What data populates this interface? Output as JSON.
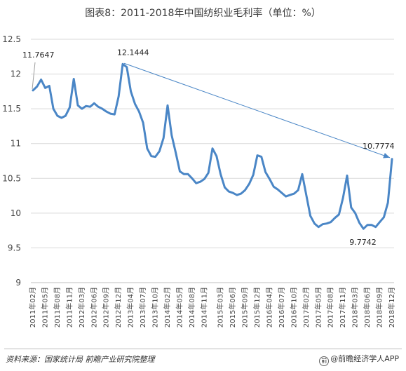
{
  "title": "图表8：2011-2018年中国纺织业毛利率（单位：%）",
  "chart_data": {
    "type": "line",
    "ylim": [
      9,
      12.5
    ],
    "yticks": [
      "9",
      "9.5",
      "10",
      "10.5",
      "11",
      "11.5",
      "12",
      "12.5"
    ],
    "x_tick_labels": [
      "2011年02月",
      "2011年05月",
      "2011年08月",
      "2011年11月",
      "2012年03月",
      "2012年06月",
      "2012年09月",
      "2012年12月",
      "2013年04月",
      "2013年07月",
      "2013年10月",
      "2014年02月",
      "2014年05月",
      "2014年08月",
      "2014年11月",
      "2015年03月",
      "2015年06月",
      "2015年09月",
      "2015年12月",
      "2016年04月",
      "2016年07月",
      "2016年10月",
      "2017年02月",
      "2017年05月",
      "2017年08月",
      "2017年11月",
      "2018年03月",
      "2018年06月",
      "2018年09月",
      "2018年12月"
    ],
    "series": [
      {
        "color": "#4a86c6",
        "values": [
          11.7647,
          11.82,
          11.92,
          11.8,
          11.83,
          11.5,
          11.4,
          11.37,
          11.4,
          11.52,
          11.93,
          11.55,
          11.5,
          11.54,
          11.53,
          11.58,
          11.53,
          11.5,
          11.46,
          11.43,
          11.42,
          11.68,
          12.1444,
          12.1,
          11.75,
          11.57,
          11.46,
          11.3,
          10.93,
          10.82,
          10.81,
          10.89,
          11.08,
          11.55,
          11.12,
          10.87,
          10.6,
          10.56,
          10.56,
          10.5,
          10.43,
          10.45,
          10.49,
          10.58,
          10.93,
          10.82,
          10.56,
          10.37,
          10.31,
          10.29,
          10.26,
          10.28,
          10.33,
          10.42,
          10.55,
          10.83,
          10.81,
          10.59,
          10.49,
          10.38,
          10.34,
          10.29,
          10.24,
          10.26,
          10.28,
          10.33,
          10.56,
          10.26,
          9.96,
          9.85,
          9.8,
          9.84,
          9.85,
          9.87,
          9.93,
          9.98,
          10.22,
          10.54,
          10.08,
          10.0,
          9.86,
          9.7742,
          9.83,
          9.83,
          9.8,
          9.87,
          9.94,
          10.15,
          10.7774
        ]
      }
    ],
    "annotations": [
      {
        "text": "11.7647",
        "point_index": 0
      },
      {
        "text": "12.1444",
        "point_index": 22
      },
      {
        "text": "10.7774",
        "point_index": 88
      },
      {
        "text": "9.7742",
        "point_index": 81
      }
    ],
    "trend_arrow": {
      "from_index": 22,
      "from_value": 12.1444,
      "to_index": 88,
      "to_value": 10.7774
    }
  },
  "footer": {
    "source": "资料来源：国家统计局 前瞻产业研究院整理",
    "brand_mark": "前",
    "brand": "@前瞻经济学人APP"
  }
}
